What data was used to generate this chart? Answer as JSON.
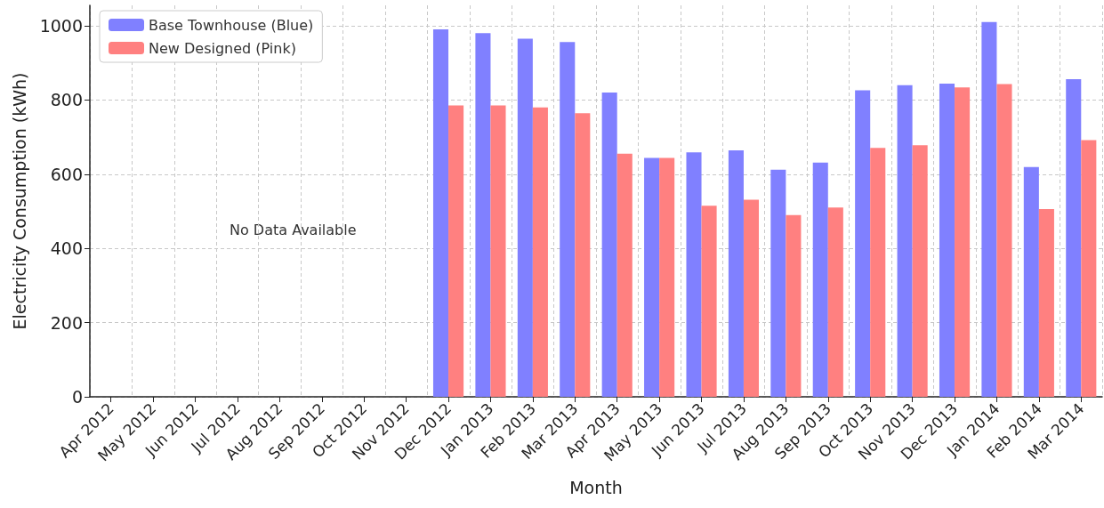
{
  "chart_data": {
    "type": "bar",
    "xlabel": "Month",
    "ylabel": "Electricity Consumption (kWh)",
    "categories": [
      "Apr 2012",
      "May 2012",
      "Jun 2012",
      "Jul 2012",
      "Aug 2012",
      "Sep 2012",
      "Oct 2012",
      "Nov 2012",
      "Dec 2012",
      "Jan 2013",
      "Feb 2013",
      "Mar 2013",
      "Apr 2013",
      "May 2013",
      "Jun 2013",
      "Jul 2013",
      "Aug 2013",
      "Sep 2013",
      "Oct 2013",
      "Nov 2013",
      "Dec 2013",
      "Jan 2014",
      "Feb 2014",
      "Mar 2014"
    ],
    "series": [
      {
        "name": "Base Townhouse (Blue)",
        "color": "#8080ff",
        "values": [
          null,
          null,
          null,
          null,
          null,
          null,
          null,
          null,
          990,
          980,
          965,
          956,
          820,
          644,
          659,
          664,
          612,
          631,
          826,
          840,
          844,
          1010,
          619,
          856
        ]
      },
      {
        "name": "New Designed (Pink)",
        "color": "#ff8080",
        "values": [
          null,
          null,
          null,
          null,
          null,
          null,
          null,
          null,
          785,
          785,
          780,
          764,
          655,
          644,
          515,
          531,
          490,
          510,
          671,
          678,
          834,
          843,
          506,
          692
        ]
      }
    ],
    "ylim": [
      0,
      1055
    ],
    "yticks": [
      0,
      200,
      400,
      600,
      800,
      1000
    ],
    "grid": true,
    "legend": "top left",
    "annotations": [
      "No Data Available"
    ]
  }
}
